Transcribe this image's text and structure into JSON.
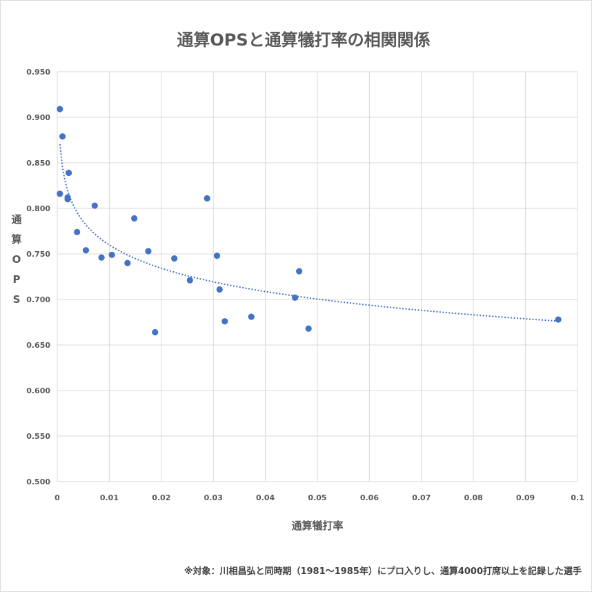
{
  "chart_data": {
    "type": "scatter",
    "title": "通算OPSと通算犠打率の相関関係",
    "xlabel": "通算犠打率",
    "ylabel": "通算OPS",
    "ylabel_chars": [
      "通",
      "算",
      "O",
      "P",
      "S"
    ],
    "xlim": [
      0,
      0.1
    ],
    "ylim": [
      0.5,
      0.95
    ],
    "x_ticks": [
      "0",
      "0.01",
      "0.02",
      "0.03",
      "0.04",
      "0.05",
      "0.06",
      "0.07",
      "0.08",
      "0.09",
      "0.1"
    ],
    "y_ticks": [
      "0.950",
      "0.900",
      "0.850",
      "0.800",
      "0.750",
      "0.700",
      "0.650",
      "0.600",
      "0.550",
      "0.500"
    ],
    "grid": true,
    "trendline": "logarithmic",
    "footnote": "※対象：川相昌弘と同時期（1981～1985年）にプロ入りし、通算4000打席以上を記録した選手",
    "colors": {
      "marker": "#4472c4",
      "trend": "#4472c4",
      "grid": "#d9d9d9",
      "text": "#595959"
    },
    "series": [
      {
        "x": [
          0.0005,
          0.0005,
          0.001,
          0.002,
          0.002,
          0.0022,
          0.0038,
          0.0055,
          0.0072,
          0.0085,
          0.0105,
          0.0135,
          0.0148,
          0.0175,
          0.0188,
          0.0225,
          0.0255,
          0.0288,
          0.0307,
          0.0312,
          0.0322,
          0.0373,
          0.0457,
          0.0465,
          0.0483,
          0.0963
        ],
        "y": [
          0.909,
          0.816,
          0.879,
          0.812,
          0.81,
          0.839,
          0.774,
          0.754,
          0.803,
          0.746,
          0.749,
          0.74,
          0.789,
          0.753,
          0.664,
          0.745,
          0.721,
          0.811,
          0.748,
          0.711,
          0.676,
          0.681,
          0.702,
          0.731,
          0.668,
          0.678
        ]
      }
    ]
  }
}
